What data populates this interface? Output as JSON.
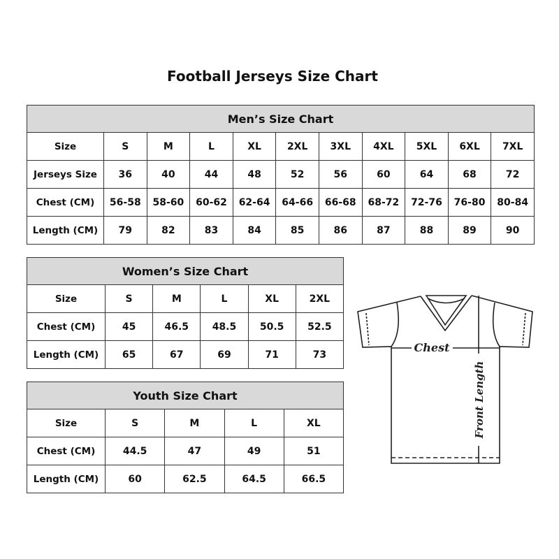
{
  "title": "Football Jerseys Size Chart",
  "men": {
    "caption": "Men’s Size Chart",
    "rows": [
      [
        "Size",
        "S",
        "M",
        "L",
        "XL",
        "2XL",
        "3XL",
        "4XL",
        "5XL",
        "6XL",
        "7XL"
      ],
      [
        "Jerseys Size",
        "36",
        "40",
        "44",
        "48",
        "52",
        "56",
        "60",
        "64",
        "68",
        "72"
      ],
      [
        "Chest (CM)",
        "56-58",
        "58-60",
        "60-62",
        "62-64",
        "64-66",
        "66-68",
        "68-72",
        "72-76",
        "76-80",
        "80-84"
      ],
      [
        "Length (CM)",
        "79",
        "82",
        "83",
        "84",
        "85",
        "86",
        "87",
        "88",
        "89",
        "90"
      ]
    ]
  },
  "women": {
    "caption": "Women’s Size Chart",
    "rows": [
      [
        "Size",
        "S",
        "M",
        "L",
        "XL",
        "2XL"
      ],
      [
        "Chest (CM)",
        "45",
        "46.5",
        "48.5",
        "50.5",
        "52.5"
      ],
      [
        "Length (CM)",
        "65",
        "67",
        "69",
        "71",
        "73"
      ]
    ]
  },
  "youth": {
    "caption": "Youth Size Chart",
    "rows": [
      [
        "Size",
        "S",
        "M",
        "L",
        "XL"
      ],
      [
        "Chest (CM)",
        "44.5",
        "47",
        "49",
        "51"
      ],
      [
        "Length (CM)",
        "60",
        "62.5",
        "64.5",
        "66.5"
      ]
    ]
  },
  "diagram": {
    "chest_label": "Chest",
    "length_label": "Front Length"
  }
}
